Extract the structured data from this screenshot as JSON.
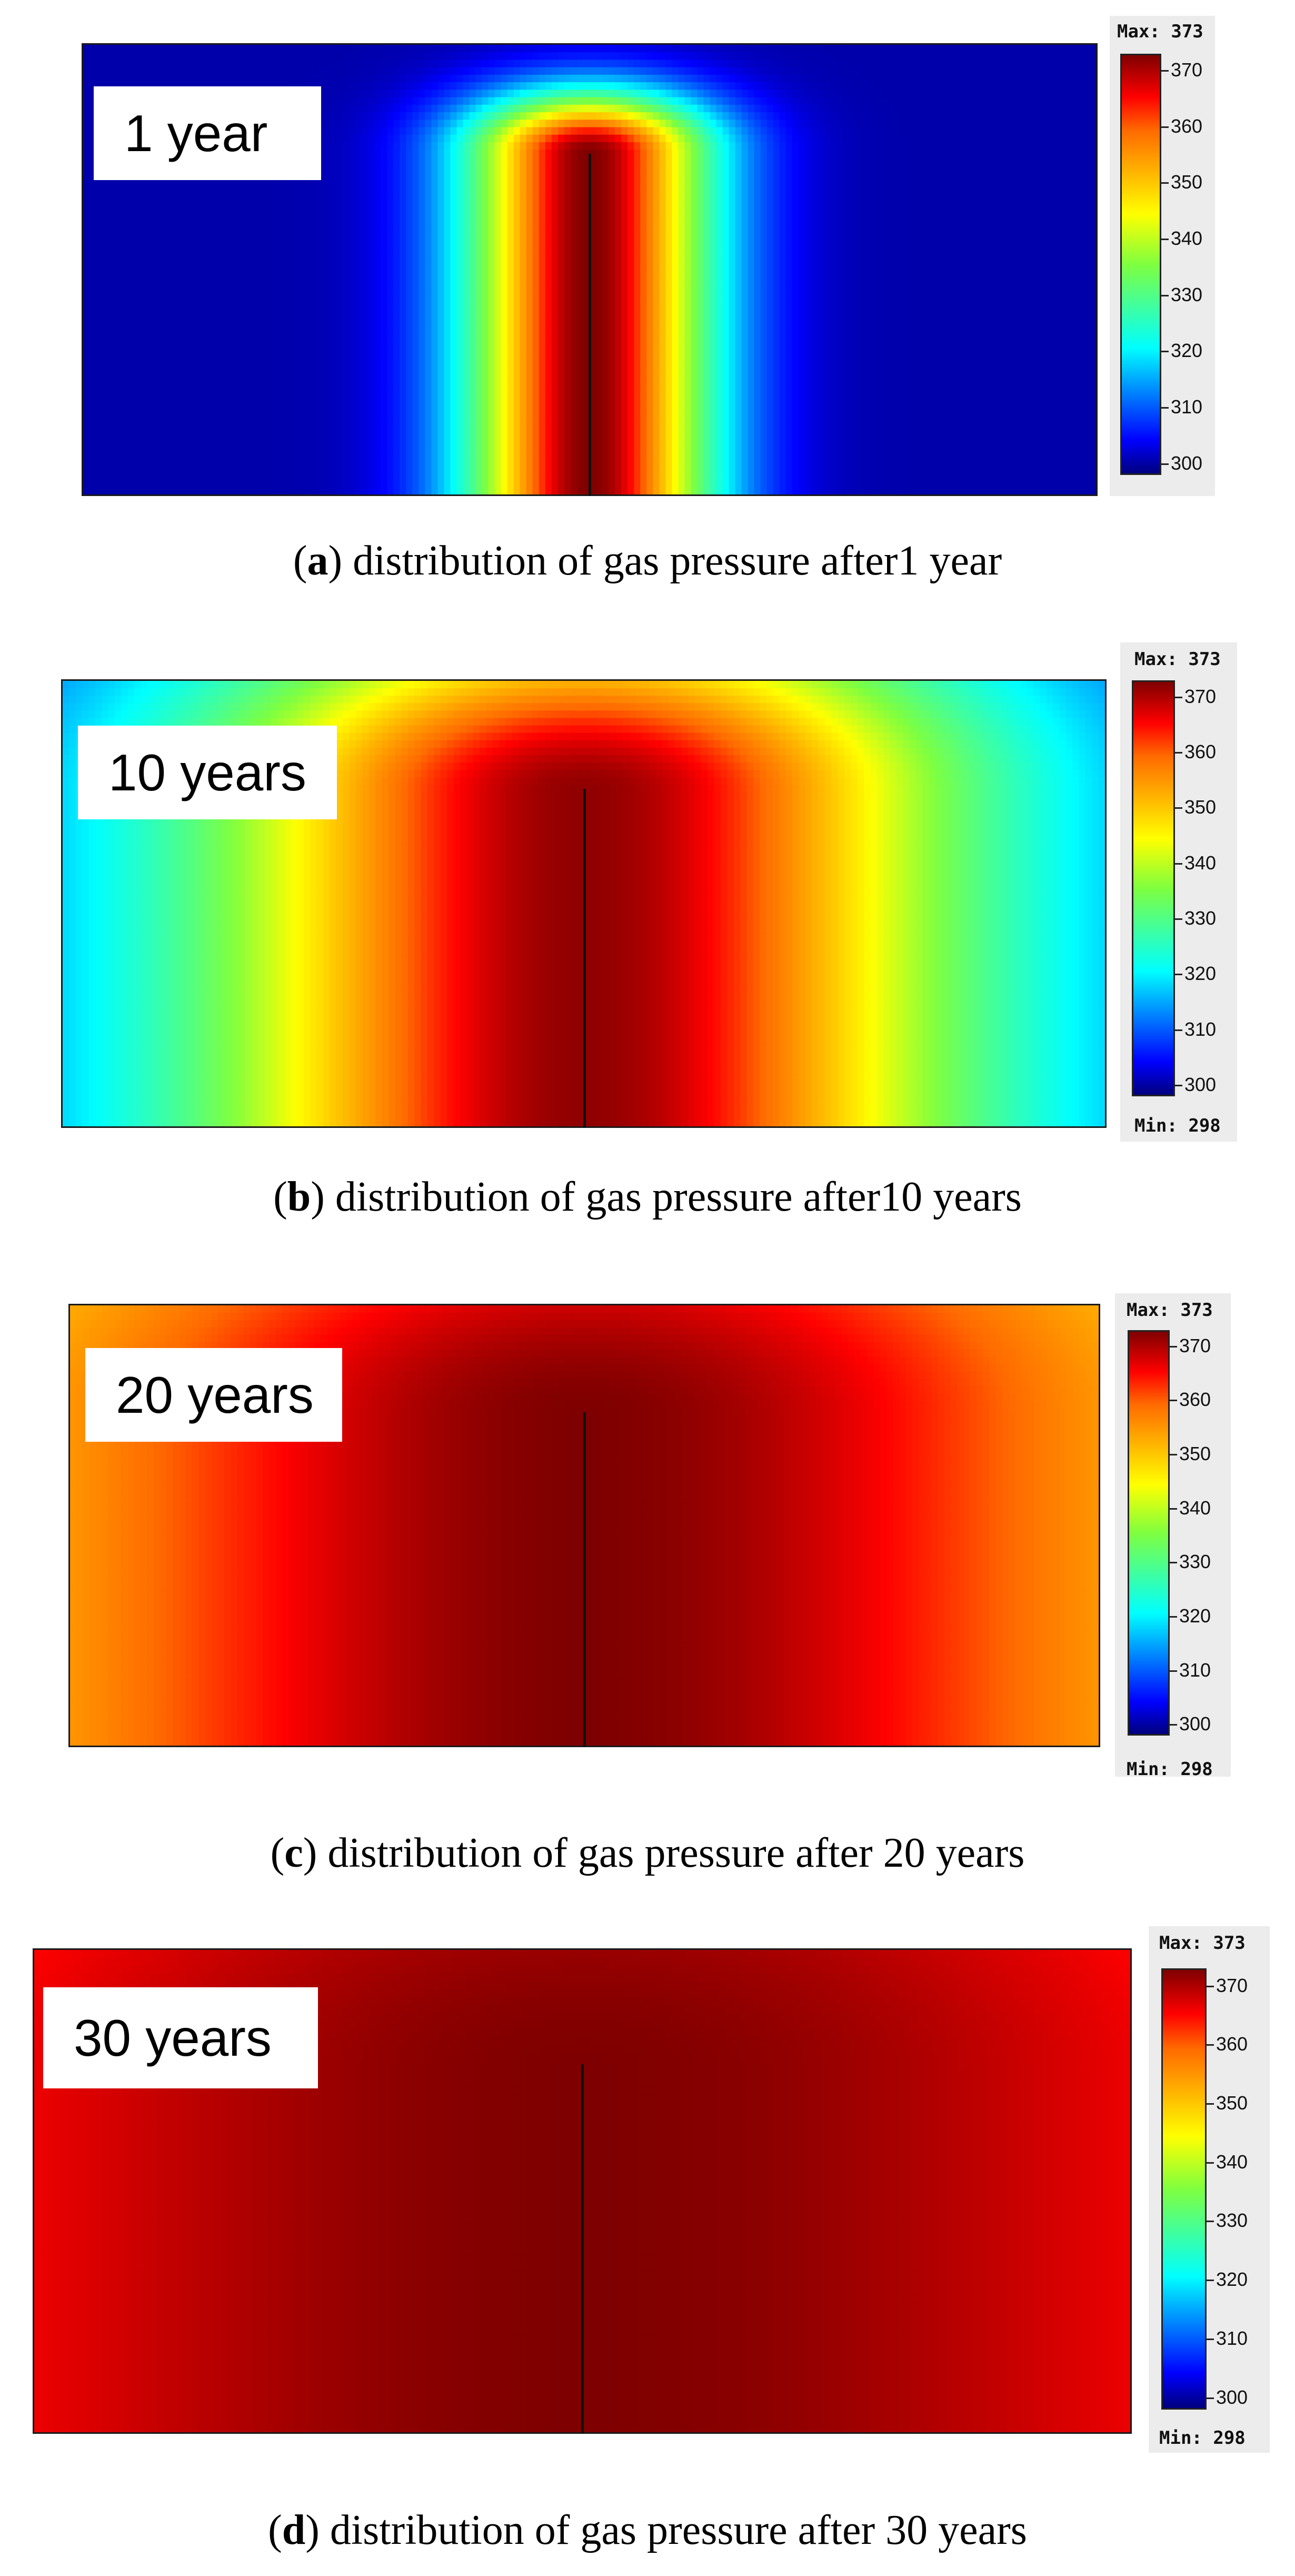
{
  "chart_data": [
    {
      "type": "heatmap",
      "panel_letter": "a",
      "caption": "distribution of gas pressure after1 year",
      "time_label": "1 year",
      "colorbar": {
        "max_label": "Max: 373",
        "min_label": "",
        "ticks": [
          370,
          360,
          350,
          340,
          330,
          320,
          310,
          300
        ],
        "range": [
          298,
          373
        ]
      },
      "field": {
        "center_value": 373,
        "far_value": 300,
        "spread": 0.085,
        "tip_depth": 0.24
      }
    },
    {
      "type": "heatmap",
      "panel_letter": "b",
      "caption": "distribution of gas pressure after10 years",
      "time_label": "10 years",
      "colorbar": {
        "max_label": "Max: 373",
        "min_label": "Min: 298",
        "ticks": [
          370,
          360,
          350,
          340,
          330,
          320,
          310,
          300
        ],
        "range": [
          298,
          373
        ]
      },
      "field": {
        "center_value": 372,
        "far_value": 308,
        "spread": 0.26,
        "tip_depth": 0.25
      }
    },
    {
      "type": "heatmap",
      "panel_letter": "c",
      "caption": "distribution of gas pressure after 20 years",
      "time_label": "20 years",
      "colorbar": {
        "max_label": "Max: 373",
        "min_label": "Min: 298",
        "ticks": [
          370,
          360,
          350,
          340,
          330,
          320,
          310,
          300
        ],
        "range": [
          298,
          373
        ]
      },
      "field": {
        "center_value": 373,
        "far_value": 338,
        "spread": 0.42,
        "tip_depth": 0.25
      }
    },
    {
      "type": "heatmap",
      "panel_letter": "d",
      "caption": "distribution of gas pressure after 30 years",
      "time_label": "30 years",
      "colorbar": {
        "max_label": "Max: 373",
        "min_label": "Min: 298",
        "ticks": [
          370,
          360,
          350,
          340,
          330,
          320,
          310,
          300
        ],
        "range": [
          298,
          373
        ]
      },
      "field": {
        "center_value": 373,
        "far_value": 354,
        "spread": 0.55,
        "tip_depth": 0.25
      }
    }
  ]
}
